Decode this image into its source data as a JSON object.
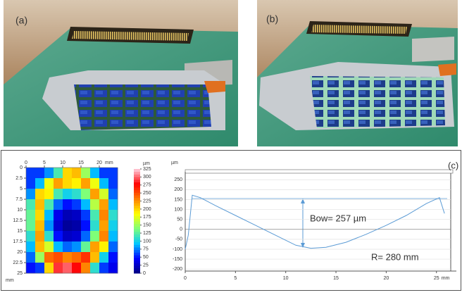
{
  "panels": [
    {
      "label": "(a)"
    },
    {
      "label": "(b)"
    }
  ],
  "chart_data": [
    {
      "type": "heatmap",
      "xlabel": "mm",
      "ylabel": "mm",
      "colorbar_label": "µm",
      "xlim": [
        0,
        25
      ],
      "ylim": [
        0,
        25
      ],
      "xticks": [
        0,
        5,
        10,
        15,
        20
      ],
      "yticks": [
        0,
        2.5,
        5,
        7.5,
        10,
        12.5,
        15,
        17.5,
        20,
        22.5,
        25
      ],
      "clim": [
        0,
        325
      ],
      "cticks": [
        0,
        25,
        50,
        75,
        100,
        125,
        150,
        175,
        200,
        225,
        250,
        275,
        300,
        325
      ],
      "colormap": [
        "#00007f",
        "#0000ff",
        "#00c8ff",
        "#7dff7a",
        "#ffff00",
        "#ff7f00",
        "#ff0000",
        "#ffd0e0"
      ],
      "values": [
        [
          60,
          60,
          80,
          120,
          200,
          210,
          150,
          90,
          60,
          60
        ],
        [
          60,
          90,
          180,
          220,
          200,
          190,
          220,
          180,
          90,
          60
        ],
        [
          80,
          200,
          190,
          120,
          100,
          110,
          140,
          220,
          170,
          70
        ],
        [
          120,
          210,
          120,
          70,
          50,
          60,
          90,
          160,
          220,
          90
        ],
        [
          130,
          200,
          90,
          40,
          20,
          25,
          60,
          120,
          230,
          110
        ],
        [
          130,
          210,
          80,
          30,
          10,
          15,
          50,
          110,
          220,
          100
        ],
        [
          110,
          220,
          110,
          50,
          25,
          30,
          70,
          140,
          230,
          90
        ],
        [
          90,
          210,
          170,
          90,
          70,
          80,
          130,
          220,
          190,
          70
        ],
        [
          70,
          150,
          240,
          250,
          230,
          240,
          260,
          210,
          100,
          50
        ],
        [
          50,
          60,
          200,
          290,
          300,
          280,
          230,
          110,
          60,
          40
        ]
      ]
    },
    {
      "type": "line",
      "label": "(c)",
      "xlabel": "mm",
      "ylabel": "µm",
      "color": "#5b9bd5",
      "grid": true,
      "xlim": [
        0,
        26
      ],
      "ylim": [
        -210,
        290
      ],
      "xticks": [
        0,
        5,
        10,
        15,
        20,
        25
      ],
      "yticks": [
        -200,
        -150,
        -100,
        -50,
        0,
        50,
        100,
        150,
        200,
        250
      ],
      "x": [
        0,
        0.3,
        0.7,
        1.5,
        3,
        5,
        7,
        9,
        11,
        12.5,
        14,
        16,
        18,
        20,
        22,
        24,
        25.3,
        25.8
      ],
      "values": [
        -100,
        -30,
        172,
        160,
        120,
        70,
        20,
        -30,
        -80,
        -95,
        -90,
        -65,
        -25,
        20,
        70,
        130,
        160,
        80
      ],
      "annotations": [
        "Bow= 257 µm",
        "R= 280 mm"
      ]
    }
  ]
}
